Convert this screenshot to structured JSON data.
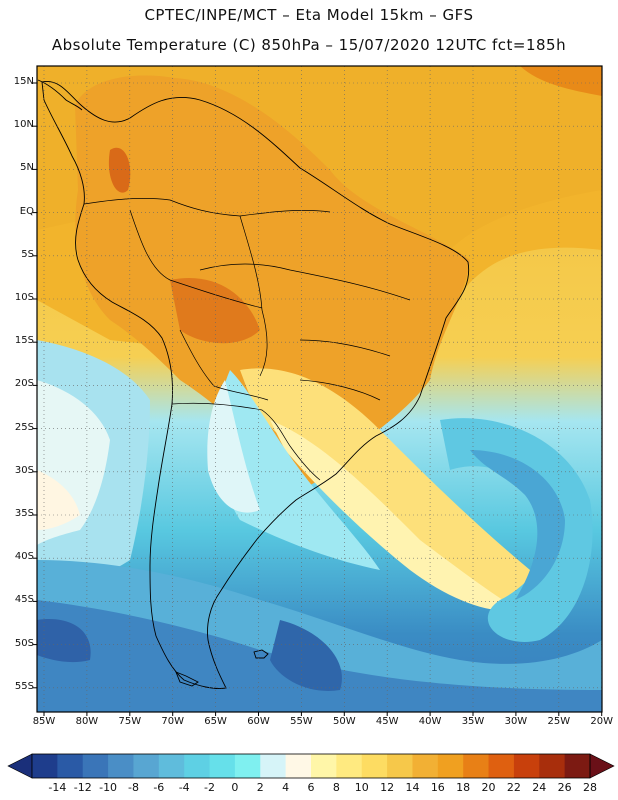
{
  "header": {
    "line1": "CPTEC/INPE/MCT –  Eta Model 15km – GFS",
    "line2": "Absolute Temperature (C) 850hPa – 15/07/2020 12UTC fct=185h"
  },
  "map": {
    "lat_labels": [
      "15N",
      "10N",
      "5N",
      "EQ",
      "5S",
      "10S",
      "15S",
      "20S",
      "25S",
      "30S",
      "35S",
      "40S",
      "45S",
      "50S",
      "55S"
    ],
    "lon_labels": [
      "85W",
      "80W",
      "75W",
      "70W",
      "65W",
      "60W",
      "55W",
      "50W",
      "45W",
      "40W",
      "35W",
      "30W",
      "25W",
      "20W"
    ],
    "grid": true,
    "temperature_field": {
      "variable": "Absolute Temperature",
      "units": "C",
      "level": "850hPa"
    }
  },
  "colorbar": {
    "labels": [
      "-14",
      "-12",
      "-10",
      "-8",
      "-6",
      "-4",
      "-2",
      "0",
      "2",
      "4",
      "6",
      "8",
      "10",
      "12",
      "14",
      "16",
      "18",
      "20",
      "22",
      "24",
      "26",
      "28"
    ],
    "colors": [
      "#1e3d8c",
      "#2a5aa6",
      "#3a75b8",
      "#4a8ec6",
      "#58a6d2",
      "#5fbcdc",
      "#5ed0e4",
      "#66e0ea",
      "#7ff0f0",
      "#d6f4f8",
      "#fff8e6",
      "#fff6a8",
      "#ffea80",
      "#fddc62",
      "#f6c84a",
      "#f2b034",
      "#f0a020",
      "#e88016",
      "#df6010",
      "#c8400c",
      "#a82e0c",
      "#7c1a12"
    ],
    "under_color": "#1a2f7a",
    "over_color": "#6a1018"
  }
}
